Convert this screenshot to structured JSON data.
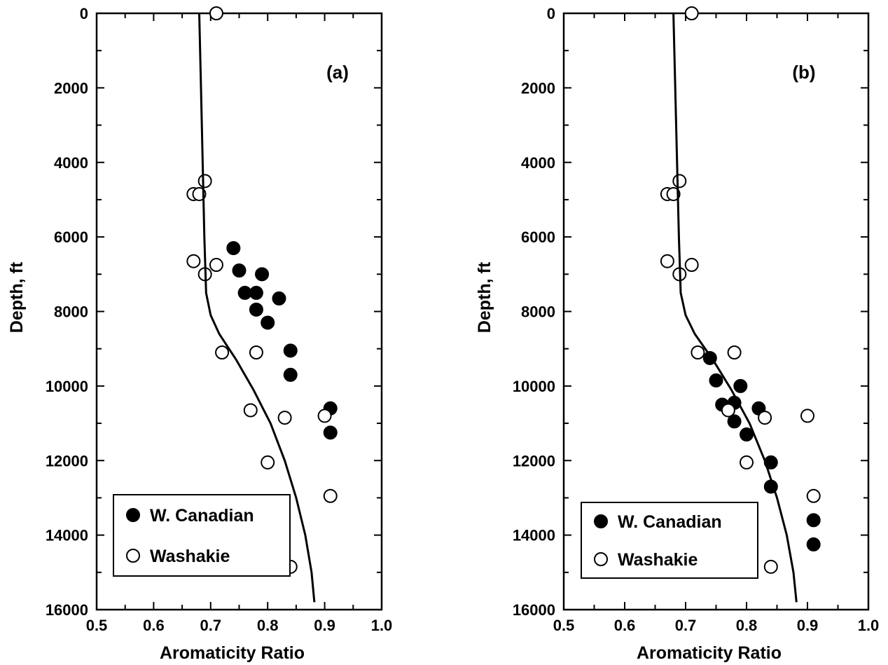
{
  "chart_data": [
    {
      "type": "scatter",
      "panel_label": "(a)",
      "xlabel": "Aromaticity Ratio",
      "ylabel": "Depth, ft",
      "xlim": [
        0.5,
        1.0
      ],
      "ylim": [
        0,
        16000
      ],
      "y_inverted": true,
      "x_ticks": [
        "0.5",
        "0.6",
        "0.7",
        "0.8",
        "0.9",
        "1.0"
      ],
      "y_ticks": [
        "0",
        "2000",
        "4000",
        "6000",
        "8000",
        "10000",
        "12000",
        "14000",
        "16000"
      ],
      "legend_position": "lower-left",
      "series": [
        {
          "name": "W. Canadian",
          "marker": "filled-circle",
          "color": "#000000",
          "points": [
            [
              0.74,
              6300
            ],
            [
              0.75,
              6900
            ],
            [
              0.79,
              7000
            ],
            [
              0.76,
              7500
            ],
            [
              0.78,
              7500
            ],
            [
              0.82,
              7650
            ],
            [
              0.78,
              7950
            ],
            [
              0.8,
              8300
            ],
            [
              0.84,
              9050
            ],
            [
              0.84,
              9700
            ],
            [
              0.91,
              10600
            ],
            [
              0.91,
              11250
            ]
          ]
        },
        {
          "name": "Washakie",
          "marker": "open-circle",
          "color": "#000000",
          "points": [
            [
              0.71,
              0
            ],
            [
              0.69,
              4500
            ],
            [
              0.67,
              4850
            ],
            [
              0.68,
              4850
            ],
            [
              0.67,
              6650
            ],
            [
              0.71,
              6750
            ],
            [
              0.69,
              7000
            ],
            [
              0.72,
              9100
            ],
            [
              0.78,
              9100
            ],
            [
              0.77,
              10650
            ],
            [
              0.83,
              10850
            ],
            [
              0.9,
              10800
            ],
            [
              0.8,
              12050
            ],
            [
              0.91,
              12950
            ],
            [
              0.84,
              14850
            ]
          ]
        },
        {
          "name": "",
          "type": "line",
          "color": "#000000",
          "points": [
            [
              0.68,
              0
            ],
            [
              0.683,
              2000
            ],
            [
              0.686,
              4000
            ],
            [
              0.689,
              6000
            ],
            [
              0.692,
              7500
            ],
            [
              0.7,
              8100
            ],
            [
              0.715,
              8600
            ],
            [
              0.745,
              9300
            ],
            [
              0.775,
              10100
            ],
            [
              0.805,
              11000
            ],
            [
              0.83,
              12000
            ],
            [
              0.85,
              13000
            ],
            [
              0.866,
              14000
            ],
            [
              0.877,
              15000
            ],
            [
              0.882,
              15800
            ]
          ]
        }
      ]
    },
    {
      "type": "scatter",
      "panel_label": "(b)",
      "xlabel": "Aromaticity Ratio",
      "ylabel": "Depth, ft",
      "xlim": [
        0.5,
        1.0
      ],
      "ylim": [
        0,
        16000
      ],
      "y_inverted": true,
      "x_ticks": [
        "0.5",
        "0.6",
        "0.7",
        "0.8",
        "0.9",
        "1.0"
      ],
      "y_ticks": [
        "0",
        "2000",
        "4000",
        "6000",
        "8000",
        "10000",
        "12000",
        "14000",
        "16000"
      ],
      "legend_position": "lower-left",
      "series": [
        {
          "name": "W. Canadian",
          "marker": "filled-circle",
          "color": "#000000",
          "points": [
            [
              0.74,
              9250
            ],
            [
              0.75,
              9850
            ],
            [
              0.79,
              10000
            ],
            [
              0.82,
              10600
            ],
            [
              0.76,
              10500
            ],
            [
              0.78,
              10450
            ],
            [
              0.78,
              10950
            ],
            [
              0.8,
              11300
            ],
            [
              0.84,
              12050
            ],
            [
              0.84,
              12700
            ],
            [
              0.91,
              13600
            ],
            [
              0.91,
              14250
            ]
          ]
        },
        {
          "name": "Washakie",
          "marker": "open-circle",
          "color": "#000000",
          "points": [
            [
              0.71,
              0
            ],
            [
              0.69,
              4500
            ],
            [
              0.67,
              4850
            ],
            [
              0.68,
              4850
            ],
            [
              0.67,
              6650
            ],
            [
              0.71,
              6750
            ],
            [
              0.69,
              7000
            ],
            [
              0.72,
              9100
            ],
            [
              0.78,
              9100
            ],
            [
              0.77,
              10650
            ],
            [
              0.83,
              10850
            ],
            [
              0.9,
              10800
            ],
            [
              0.8,
              12050
            ],
            [
              0.91,
              12950
            ],
            [
              0.84,
              14850
            ]
          ]
        },
        {
          "name": "",
          "type": "line",
          "color": "#000000",
          "points": [
            [
              0.68,
              0
            ],
            [
              0.683,
              2000
            ],
            [
              0.686,
              4000
            ],
            [
              0.689,
              6000
            ],
            [
              0.692,
              7500
            ],
            [
              0.7,
              8100
            ],
            [
              0.715,
              8600
            ],
            [
              0.745,
              9300
            ],
            [
              0.775,
              10100
            ],
            [
              0.805,
              11000
            ],
            [
              0.83,
              12000
            ],
            [
              0.85,
              13000
            ],
            [
              0.866,
              14000
            ],
            [
              0.877,
              15000
            ],
            [
              0.882,
              15800
            ]
          ]
        }
      ]
    }
  ]
}
